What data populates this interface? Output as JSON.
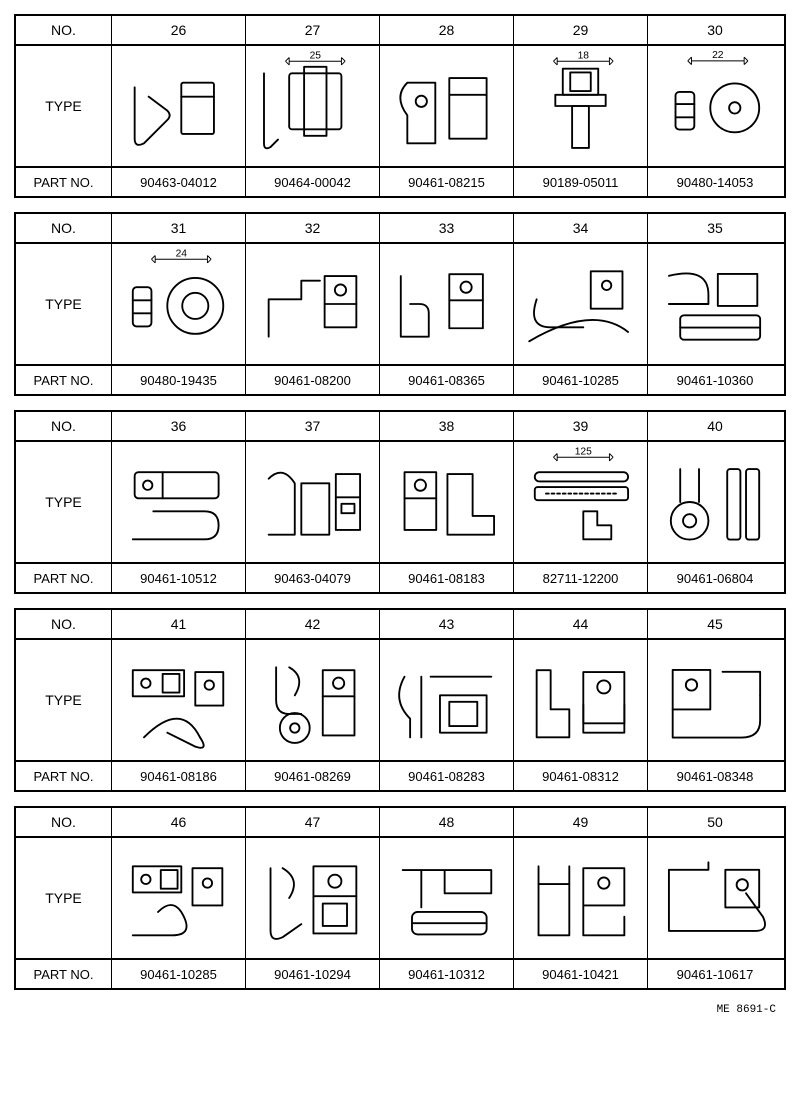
{
  "labels": {
    "no": "NO.",
    "type": "TYPE",
    "partno": "PART NO."
  },
  "footer_code": "ME 8691-C",
  "stroke": "#000000",
  "bg": "#ffffff",
  "blocks": [
    {
      "items": [
        {
          "no": "26",
          "partno": "90463-04012",
          "dim": ""
        },
        {
          "no": "27",
          "partno": "90464-00042",
          "dim": "25"
        },
        {
          "no": "28",
          "partno": "90461-08215",
          "dim": ""
        },
        {
          "no": "29",
          "partno": "90189-05011",
          "dim": "18"
        },
        {
          "no": "30",
          "partno": "90480-14053",
          "dim": "22"
        }
      ]
    },
    {
      "items": [
        {
          "no": "31",
          "partno": "90480-19435",
          "dim": "24"
        },
        {
          "no": "32",
          "partno": "90461-08200",
          "dim": ""
        },
        {
          "no": "33",
          "partno": "90461-08365",
          "dim": ""
        },
        {
          "no": "34",
          "partno": "90461-10285",
          "dim": ""
        },
        {
          "no": "35",
          "partno": "90461-10360",
          "dim": ""
        }
      ]
    },
    {
      "items": [
        {
          "no": "36",
          "partno": "90461-10512",
          "dim": ""
        },
        {
          "no": "37",
          "partno": "90463-04079",
          "dim": ""
        },
        {
          "no": "38",
          "partno": "90461-08183",
          "dim": ""
        },
        {
          "no": "39",
          "partno": "82711-12200",
          "dim": "125"
        },
        {
          "no": "40",
          "partno": "90461-06804",
          "dim": ""
        }
      ]
    },
    {
      "items": [
        {
          "no": "41",
          "partno": "90461-08186",
          "dim": ""
        },
        {
          "no": "42",
          "partno": "90461-08269",
          "dim": ""
        },
        {
          "no": "43",
          "partno": "90461-08283",
          "dim": ""
        },
        {
          "no": "44",
          "partno": "90461-08312",
          "dim": ""
        },
        {
          "no": "45",
          "partno": "90461-08348",
          "dim": ""
        }
      ]
    },
    {
      "items": [
        {
          "no": "46",
          "partno": "90461-10285",
          "dim": ""
        },
        {
          "no": "47",
          "partno": "90461-10294",
          "dim": ""
        },
        {
          "no": "48",
          "partno": "90461-10312",
          "dim": ""
        },
        {
          "no": "49",
          "partno": "90461-10421",
          "dim": ""
        },
        {
          "no": "50",
          "partno": "90461-10617",
          "dim": ""
        }
      ]
    }
  ]
}
